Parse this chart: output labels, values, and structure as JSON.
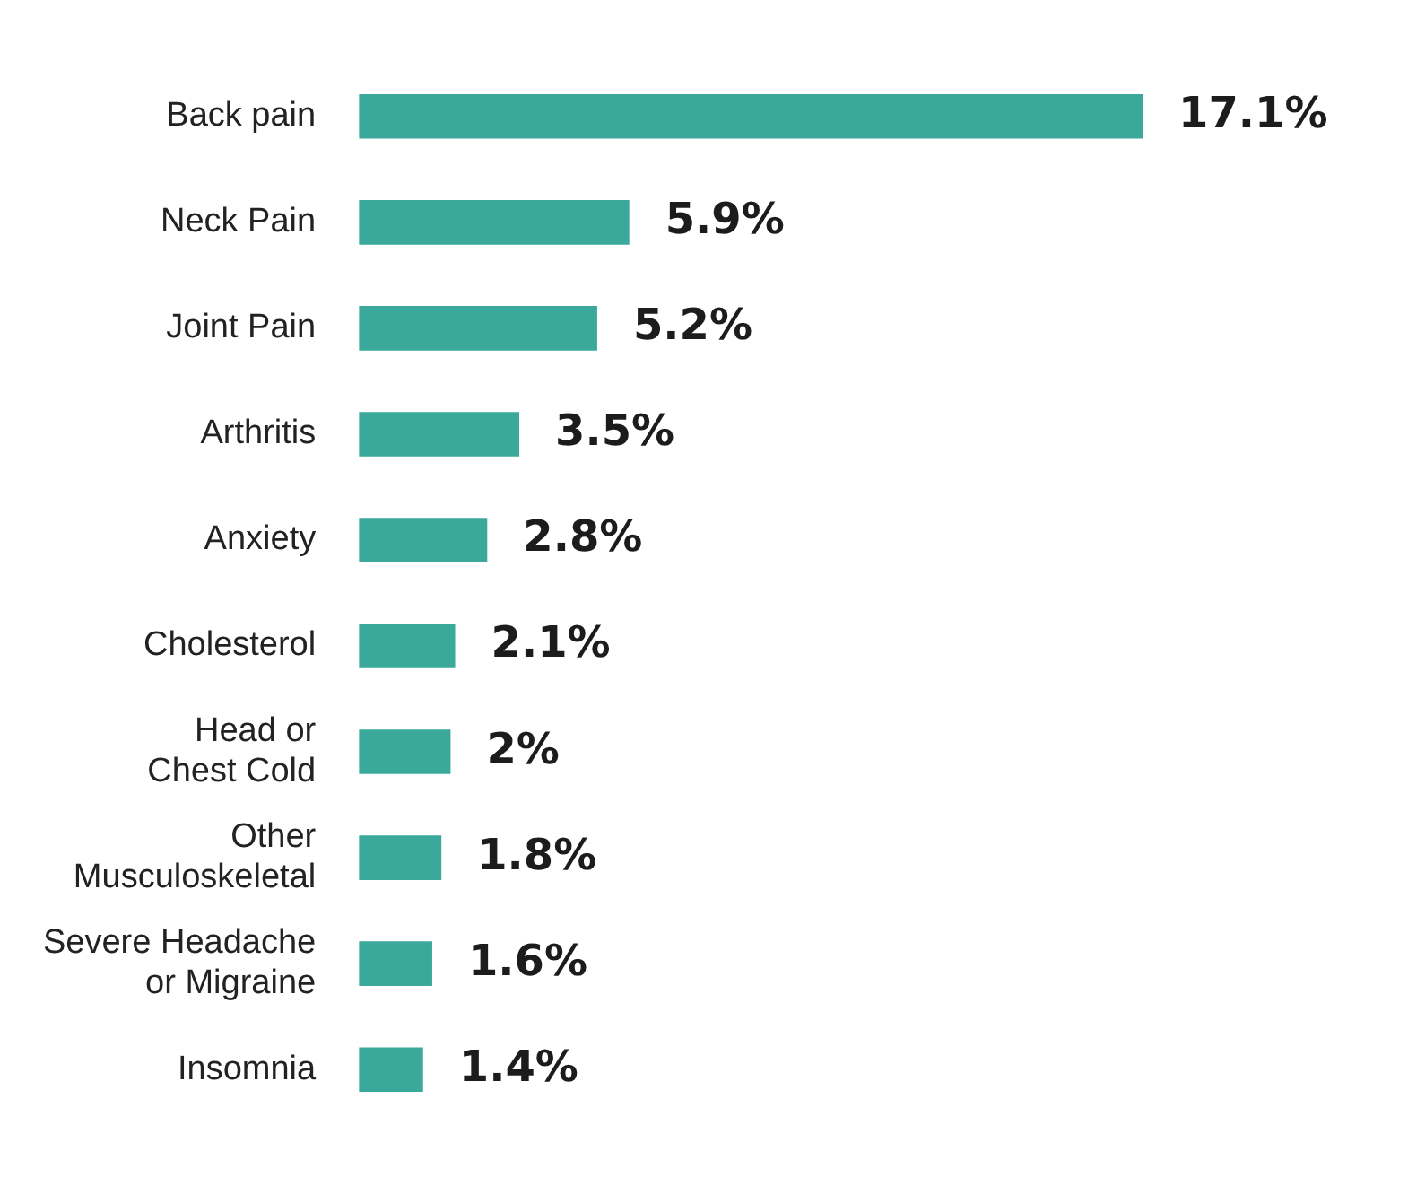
{
  "chart_data": {
    "type": "bar",
    "orientation": "horizontal",
    "categories": [
      "Back pain",
      "Neck Pain",
      "Joint Pain",
      "Arthritis",
      "Anxiety",
      "Cholesterol",
      "Head or\nChest Cold",
      "Other\nMusculoskeletal",
      "Severe Headache\nor Migraine",
      "Insomnia"
    ],
    "values": [
      17.1,
      5.9,
      5.2,
      3.5,
      2.8,
      2.1,
      2,
      1.8,
      1.6,
      1.4
    ],
    "value_labels": [
      "17.1%",
      "5.9%",
      "5.2%",
      "3.5%",
      "2.8%",
      "2.1%",
      "2%",
      "1.8%",
      "1.6%",
      "1.4%"
    ],
    "color": "#3aa89a",
    "grid": false,
    "legend": false
  }
}
